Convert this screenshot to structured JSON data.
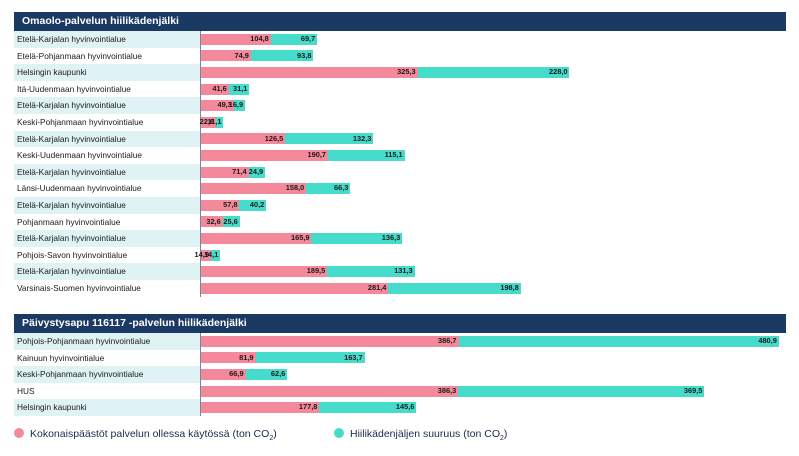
{
  "colors": {
    "header_bg": "#1b3a63",
    "total": "#f4899b",
    "footprint": "#45dccb",
    "shaded_row": "#dff2f4"
  },
  "chart_data": [
    {
      "type": "bar",
      "orientation": "horizontal",
      "stacked": true,
      "title": "Omaolo-palvelun hiilikädenjälki",
      "categories": [
        "Etelä-Karjalan hyvinvointialue",
        "Etelä-Pohjanmaan hyvinvointialue",
        "Helsingin kaupunki",
        "Itä-Uudenmaan hyvinvointialue",
        "Etelä-Karjalan hyvinvointialue",
        "Keski-Pohjanmaan hyvinvointialue",
        "Etelä-Karjalan hyvinvointialue",
        "Keski-Uudenmaan hyvinvointialue",
        "Etelä-Karjalan hyvinvointialue",
        "Länsi-Uudenmaan hyvinvointialue",
        "Etelä-Karjalan hyvinvointialue",
        "Pohjanmaan hyvinvointialue",
        "Etelä-Karjalan hyvinvointialue",
        "Pohjois-Savon hyvinvointialue",
        "Etelä-Karjalan hyvinvointialue",
        "Varsinais-Suomen hyvinvointialue"
      ],
      "series": [
        {
          "key": "total",
          "values": [
            104.8,
            74.9,
            325.3,
            41.6,
            49.3,
            22.6,
            126.5,
            190.7,
            71.4,
            158.0,
            57.8,
            32.6,
            165.9,
            14.9,
            189.5,
            281.4
          ],
          "labels": [
            "104,8",
            "74,9",
            "325,3",
            "41,6",
            "49,3",
            "22,6",
            "126,5",
            "190,7",
            "71,4",
            "158,0",
            "57,8",
            "32,6",
            "165,9",
            "14,9",
            "189,5",
            "281,4"
          ]
        },
        {
          "key": "footprint",
          "values": [
            69.7,
            93.8,
            228.0,
            31.1,
            16.9,
            11.1,
            132.3,
            115.1,
            24.9,
            66.3,
            40.2,
            25.6,
            136.3,
            14.1,
            131.3,
            198.8
          ],
          "labels": [
            "69,7",
            "93,8",
            "228,0",
            "31,1",
            "16,9",
            "11,1",
            "132,3",
            "115,1",
            "24,9",
            "66,3",
            "40,2",
            "25,6",
            "136,3",
            "14,1",
            "131,3",
            "198,8"
          ]
        }
      ],
      "grid": false
    },
    {
      "type": "bar",
      "orientation": "horizontal",
      "stacked": true,
      "title": "Päivystysapu 116117 -palvelun hiilikädenjälki",
      "categories": [
        "Pohjois-Pohjanmaan hyvinvointialue",
        "Kainuun hyvinvointialue",
        "Keski-Pohjanmaan hyvinvointialue",
        "HUS",
        "Helsingin kaupunki"
      ],
      "series": [
        {
          "key": "total",
          "values": [
            386.7,
            81.9,
            66.9,
            386.3,
            177.8
          ],
          "labels": [
            "386,7",
            "81,9",
            "66,9",
            "386,3",
            "177,8"
          ]
        },
        {
          "key": "footprint",
          "values": [
            480.9,
            163.7,
            62.6,
            369.5,
            145.6
          ],
          "labels": [
            "480,9",
            "163,7",
            "62,6",
            "369,5",
            "145,6"
          ]
        }
      ],
      "grid": false
    }
  ],
  "legend": {
    "total_label": "Kokonaispäästöt palvelun ollessa käytössä (ton CO",
    "footprint_label": "Hiilikädenjäljen suuruus (ton CO",
    "subscript": "2",
    "close": ")",
    "position": "bottom"
  }
}
